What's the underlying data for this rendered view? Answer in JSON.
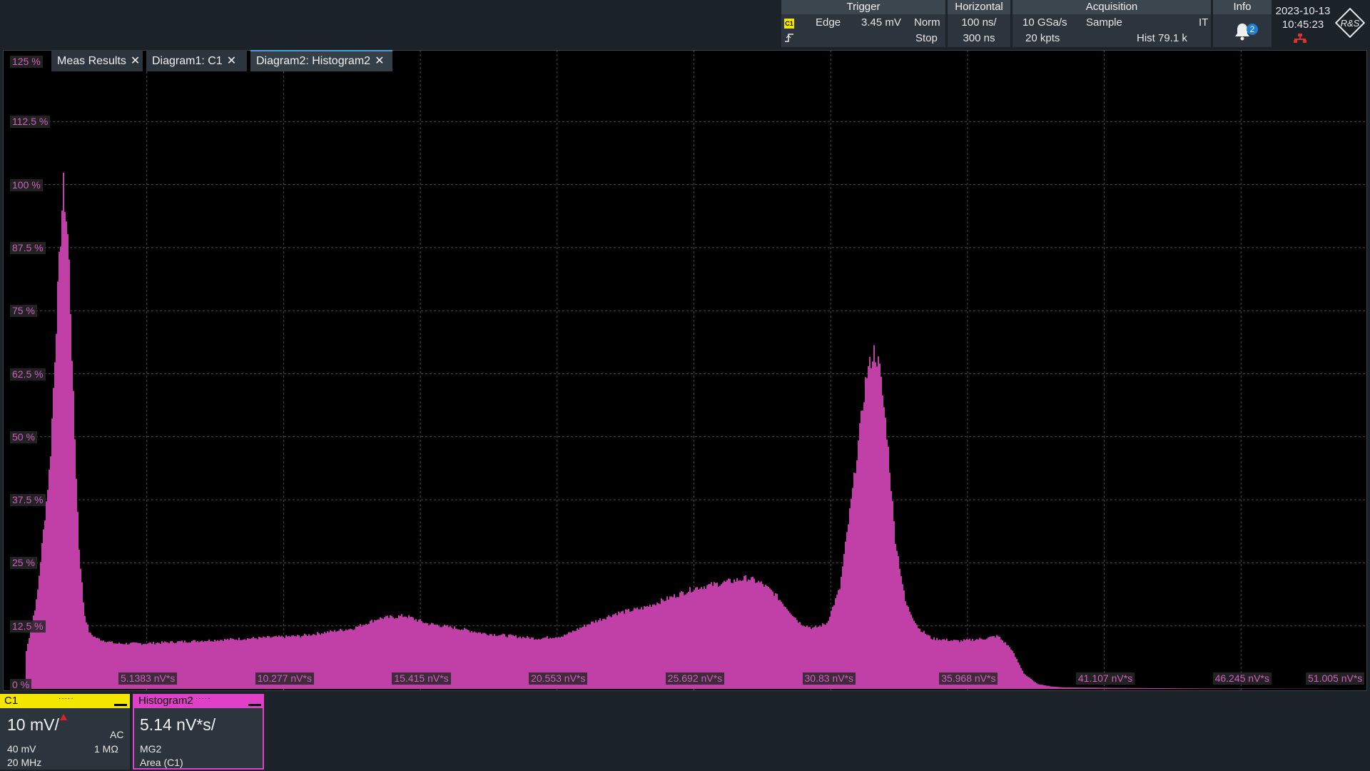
{
  "topbar": {
    "trigger": {
      "title": "Trigger",
      "channel": "C1",
      "type": "Edge",
      "level": "3.45 mV",
      "mode": "Norm",
      "state": "Stop"
    },
    "horizontal": {
      "title": "Horizontal",
      "scale": "100 ns/",
      "position": "300 ns"
    },
    "acquisition": {
      "title": "Acquisition",
      "rate": "10 GSa/s",
      "mode": "Sample",
      "flag": "IT",
      "points": "20 kpts",
      "hist": "Hist 79.1 k"
    },
    "info": {
      "title": "Info",
      "count": "2"
    },
    "date": "2023-10-13",
    "time": "10:45:23",
    "logo_text": "R&S"
  },
  "tabs": [
    {
      "label": "Meas Results"
    },
    {
      "label": "Diagram1: C1"
    },
    {
      "label": "Diagram2: Histogram2"
    }
  ],
  "chart_data": {
    "type": "area",
    "ylabels": [
      "125 %",
      "112.5 %",
      "100 %",
      "87.5 %",
      "75 %",
      "62.5 %",
      "50 %",
      "37.5 %",
      "25 %",
      "12.5 %",
      "0 %"
    ],
    "xlabels": [
      "5.1383 nV*s",
      "10.277 nV*s",
      "15.415 nV*s",
      "20.553 nV*s",
      "25.692 nV*s",
      "30.83 nV*s",
      "35.968 nV*s",
      "41.107 nV*s",
      "46.245 nV*s",
      "51.005 nV*s"
    ],
    "ylim": [
      0,
      125
    ],
    "xlim": [
      0,
      51.5
    ],
    "color": "#c040a8",
    "x": [
      0,
      0.5,
      1.0,
      1.5,
      1.8,
      2.0,
      2.2,
      2.4,
      2.6,
      2.8,
      3.0,
      3.3,
      3.6,
      4.0,
      5.0,
      7.0,
      9.0,
      11.0,
      13.0,
      14.0,
      15.0,
      15.8,
      17.0,
      18.0,
      20.0,
      21.0,
      22.0,
      23.0,
      24.0,
      25.0,
      26.0,
      27.0,
      28.0,
      28.5,
      29.0,
      30.0,
      30.5,
      31.0,
      31.5,
      32.0,
      32.5,
      32.8,
      33.0,
      33.3,
      33.6,
      34.0,
      34.5,
      35.0,
      36.0,
      37.0,
      37.5,
      38.0,
      38.5,
      39.0,
      39.5,
      40.0,
      42.0,
      45.0,
      51.5
    ],
    "y": [
      0,
      5,
      18,
      45,
      80,
      100,
      88,
      55,
      28,
      15,
      11,
      10,
      9.5,
      9,
      9,
      9.5,
      10,
      10.5,
      12,
      14,
      14.5,
      13,
      12,
      11,
      10,
      10.5,
      13,
      15,
      16,
      18,
      20,
      21,
      22,
      21,
      19,
      13,
      12,
      13,
      20,
      40,
      62,
      67,
      64,
      50,
      30,
      17,
      12,
      10,
      9.5,
      10,
      10.5,
      8,
      3,
      1,
      0.5,
      0.3,
      0.2,
      0.1,
      0
    ]
  },
  "channels": {
    "c1": {
      "label": "C1",
      "scale": "10 mV/",
      "offset": "40 mV",
      "coupling": "AC",
      "impedance": "1 MΩ",
      "bandwidth": "20 MHz",
      "color": "#f5e600"
    },
    "histogram": {
      "label": "Histogram2",
      "scale": "5.14 nV*s/",
      "source": "MG2",
      "mode": "Area (C1)",
      "color": "#e040c8"
    }
  }
}
